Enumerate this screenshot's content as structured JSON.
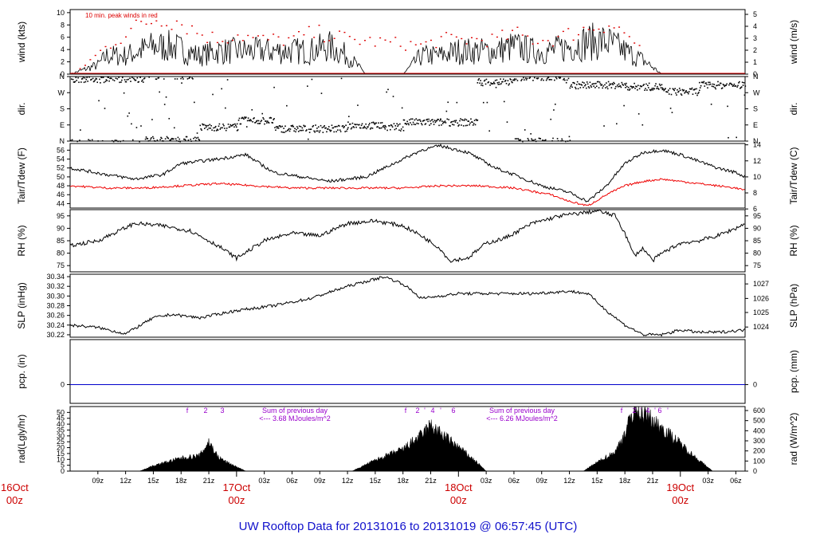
{
  "title": "UW Rooftop Data for 20131016  to  20131019 @ 06:57:45  (UTC)",
  "colors": {
    "axis": "#000000",
    "peak": "#dd0000",
    "tdew": "#ee0000",
    "pcp": "#0000cc",
    "note": "#9900cc",
    "date": "#cc0000",
    "title": "#1111cc"
  },
  "panels": {
    "wind": {
      "left_label": "wind (kts)",
      "right_label": "wind (m/s)",
      "left_ticks": [
        "0",
        "2",
        "4",
        "6",
        "8",
        "10"
      ],
      "right_ticks": [
        "0",
        "1",
        "2",
        "3",
        "4",
        "5"
      ],
      "annotation": "10 min. peak winds in red"
    },
    "dir": {
      "left_label": "dir.",
      "right_label": "dir.",
      "left_ticks": [
        "N",
        "E",
        "S",
        "W",
        "N"
      ],
      "right_ticks": [
        "N",
        "E",
        "S",
        "W",
        "N"
      ]
    },
    "temp": {
      "left_label": "Tair/Tdew (F)",
      "right_label": "Tair/Tdew (C)",
      "left_ticks": [
        "44",
        "46",
        "48",
        "50",
        "52",
        "54",
        "56"
      ],
      "right_ticks": [
        "6",
        "8",
        "10",
        "12",
        "14"
      ]
    },
    "rh": {
      "left_label": "RH (%)",
      "right_label": "RH (%)",
      "left_ticks": [
        "75",
        "80",
        "85",
        "90",
        "95"
      ],
      "right_ticks": [
        "75",
        "80",
        "85",
        "90",
        "95"
      ]
    },
    "slp": {
      "left_label": "SLP (inHg)",
      "right_label": "SLP (hPa)",
      "left_ticks": [
        "30.22",
        "30.24",
        "30.26",
        "30.28",
        "30.30",
        "30.32",
        "30.34"
      ],
      "right_ticks": [
        "1024",
        "1025",
        "1026",
        "1027"
      ]
    },
    "pcp": {
      "left_label": "pcp. (in)",
      "right_label": "pcp. (mm)",
      "left_ticks": [
        "0"
      ],
      "right_ticks": [
        "0"
      ]
    },
    "rad": {
      "left_label": "rad(Lgly/hr)",
      "right_label": "rad (W/m^2)",
      "left_ticks": [
        "0",
        "5",
        "10",
        "15",
        "20",
        "25",
        "30",
        "35",
        "40",
        "45",
        "50"
      ],
      "right_ticks": [
        "0",
        "100",
        "200",
        "300",
        "400",
        "500",
        "600"
      ],
      "notes": [
        {
          "line1": "Sum of previous day",
          "line2": "<--- 3.68 MJoules/m^2"
        },
        {
          "line1": "Sum of previous day",
          "line2": "<--- 6.26 MJoules/m^2"
        }
      ],
      "cloud_marks": [
        [
          "f",
          "2",
          "3"
        ],
        [
          "f",
          "2",
          "'",
          "4",
          "'",
          "6"
        ],
        [
          "f",
          "2",
          "'",
          "4",
          "'",
          "6",
          "'"
        ]
      ]
    }
  },
  "time_axis": {
    "hour_ticks": [
      "09z",
      "12z",
      "15z",
      "18z",
      "21z",
      "03z",
      "06z",
      "09z",
      "12z",
      "15z",
      "18z",
      "21z",
      "03z",
      "06z",
      "09z",
      "12z",
      "15z",
      "18z",
      "21z",
      "03z",
      "06z"
    ],
    "date_labels": [
      {
        "date": "16Oct",
        "hour": "00z"
      },
      {
        "date": "17Oct",
        "hour": "00z"
      },
      {
        "date": "18Oct",
        "hour": "00z"
      },
      {
        "date": "19Oct",
        "hour": "00z"
      }
    ]
  },
  "chart_data": {
    "type": "line",
    "x_unit": "hours UTC from 2013-10-16 06:00",
    "x_range": [
      0,
      73
    ],
    "series": [
      {
        "name": "wind (kts)",
        "ylim": [
          0,
          10.5
        ],
        "x": [
          0,
          3,
          4,
          6,
          9,
          11,
          14,
          16,
          18,
          20,
          22,
          24,
          26,
          28,
          30,
          32,
          34,
          36,
          38,
          40,
          42,
          44,
          46,
          48,
          50,
          52,
          54,
          56,
          58,
          60,
          62,
          64,
          66,
          68,
          70,
          72,
          73
        ],
        "values": [
          0,
          2,
          4,
          4,
          6,
          6,
          4,
          5,
          5,
          5,
          5,
          5,
          5,
          6,
          4,
          0,
          0,
          0,
          4,
          4,
          5,
          5,
          5,
          6,
          5,
          5,
          6,
          7,
          7,
          5,
          3,
          0,
          0,
          0,
          0,
          0,
          0
        ]
      },
      {
        "name": "10 min. peak winds",
        "ylim": [
          0,
          10.5
        ],
        "x": [
          1,
          4,
          6,
          8,
          10,
          12,
          14,
          16,
          18,
          20,
          22,
          24,
          26,
          28,
          30,
          38,
          40,
          42,
          44,
          46,
          48,
          50,
          52,
          54,
          56,
          58,
          60,
          62
        ],
        "values": [
          1,
          5,
          7,
          9,
          10,
          9,
          7,
          6,
          7,
          6,
          6,
          6,
          7,
          7,
          6,
          5,
          6,
          6,
          6,
          6,
          7,
          6,
          6,
          7,
          8,
          9,
          7,
          4
        ]
      },
      {
        "name": "Tair (F)",
        "ylim": [
          43,
          57.5
        ],
        "x": [
          0,
          4,
          7,
          10,
          12,
          16,
          19,
          22,
          25,
          28,
          30,
          32,
          35,
          38,
          40,
          43,
          46,
          48,
          51,
          54,
          56,
          58,
          60,
          62,
          64,
          66,
          68,
          70,
          72,
          73
        ],
        "values": [
          52,
          50.5,
          49.5,
          50.5,
          53,
          54,
          55,
          51,
          50,
          49,
          49.5,
          50,
          53,
          56,
          57,
          55.5,
          52,
          50.5,
          48,
          46.5,
          44.5,
          48,
          53,
          55.5,
          56,
          55,
          53.5,
          52,
          51,
          50
        ]
      },
      {
        "name": "Tdew (F)",
        "ylim": [
          43,
          57.5
        ],
        "x": [
          0,
          4,
          8,
          12,
          16,
          20,
          24,
          28,
          32,
          36,
          40,
          44,
          48,
          52,
          54,
          56,
          58,
          60,
          62,
          64,
          66,
          68,
          70,
          72,
          73
        ],
        "values": [
          48,
          47.5,
          47.5,
          48,
          48.5,
          48,
          47.5,
          47.5,
          47.5,
          47.5,
          48,
          48,
          47.5,
          46,
          44.5,
          43.5,
          46,
          48,
          49,
          49.5,
          49,
          48.5,
          48,
          47.5,
          47
        ]
      },
      {
        "name": "RH (%)",
        "ylim": [
          72.5,
          97.5
        ],
        "x": [
          0,
          3,
          7,
          10,
          13,
          16,
          18,
          21,
          24,
          27,
          30,
          33,
          36,
          38,
          40,
          41,
          43,
          45,
          47,
          50,
          53,
          55,
          57,
          59,
          60,
          61,
          62,
          63,
          64,
          66,
          68,
          70,
          72,
          73
        ],
        "values": [
          83,
          85,
          92,
          91,
          89,
          83,
          78,
          85,
          88,
          87,
          92,
          93,
          91,
          87,
          82,
          77,
          78,
          84,
          86,
          92,
          95,
          96,
          97,
          95,
          88,
          79,
          82,
          77,
          80,
          84,
          85,
          87,
          90,
          92
        ]
      },
      {
        "name": "SLP (inHg)",
        "ylim": [
          30.215,
          30.345
        ],
        "x": [
          0,
          3,
          6,
          9,
          11,
          14,
          18,
          22,
          26,
          30,
          34,
          36,
          38,
          40,
          42,
          46,
          50,
          54,
          56,
          58,
          60,
          62,
          64,
          66,
          68,
          70,
          73
        ],
        "values": [
          30.24,
          30.235,
          30.222,
          30.255,
          30.262,
          30.255,
          30.27,
          30.28,
          30.295,
          30.32,
          30.34,
          30.325,
          30.295,
          30.3,
          30.305,
          30.305,
          30.305,
          30.31,
          30.305,
          30.27,
          30.24,
          30.22,
          30.22,
          30.23,
          30.225,
          30.225,
          30.23
        ]
      },
      {
        "name": "pcp. (in)",
        "ylim": [
          -0.5,
          1.2
        ],
        "x": [
          0,
          73
        ],
        "values": [
          0,
          0
        ]
      },
      {
        "name": "rad (Lgly/hr)",
        "ylim": [
          0,
          55
        ],
        "x": [
          7.5,
          9,
          12,
          14,
          15,
          16,
          17,
          18,
          19,
          20,
          24.5,
          30.5,
          33,
          36,
          38,
          39,
          40,
          42,
          44,
          45,
          48,
          55.5,
          57,
          59,
          60,
          61,
          62,
          62.5,
          64,
          66,
          68,
          69.5
        ],
        "values": [
          0,
          5,
          12,
          14,
          27,
          13,
          8,
          4,
          0,
          0,
          0,
          0,
          10,
          20,
          33,
          42,
          35,
          22,
          8,
          0,
          0,
          0,
          8,
          18,
          35,
          57,
          52,
          50,
          40,
          25,
          10,
          0
        ]
      }
    ]
  }
}
